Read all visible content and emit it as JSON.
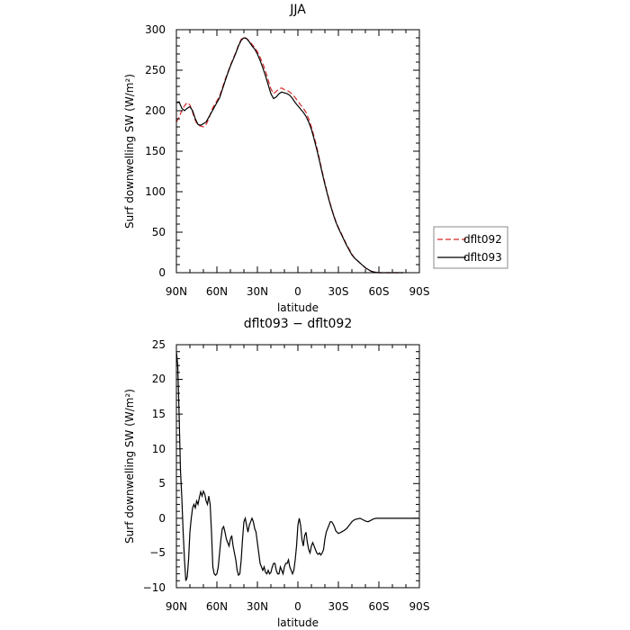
{
  "chart_data": [
    {
      "type": "line",
      "title": "JJA",
      "xlabel": "latitude",
      "ylabel": "Surf downwelling SW (W/m²)",
      "xlim": [
        90,
        -90
      ],
      "ylim": [
        0,
        300
      ],
      "x_ticks": [
        90,
        60,
        30,
        0,
        -30,
        -60,
        -90
      ],
      "x_tick_labels": [
        "90N",
        "60N",
        "30N",
        "0",
        "30S",
        "60S",
        "90S"
      ],
      "y_ticks": [
        0,
        50,
        100,
        150,
        200,
        250,
        300
      ],
      "y_tick_labels": [
        "0",
        "50",
        "100",
        "150",
        "200",
        "250",
        "300"
      ],
      "legend": {
        "placement": "right",
        "entries": [
          "dflt092",
          "dflt093"
        ]
      },
      "series": [
        {
          "name": "dflt092",
          "color": "#d62728",
          "dash": "dashed",
          "x": [
            90,
            88,
            86,
            84,
            82,
            80,
            78,
            76,
            74,
            72,
            70,
            68,
            66,
            64,
            62,
            60,
            58,
            56,
            54,
            52,
            50,
            48,
            46,
            44,
            42,
            40,
            38,
            36,
            34,
            32,
            30,
            28,
            26,
            24,
            22,
            20,
            18,
            16,
            14,
            12,
            10,
            8,
            6,
            4,
            2,
            0,
            -2,
            -4,
            -6,
            -8,
            -10,
            -12,
            -14,
            -16,
            -18,
            -20,
            -22,
            -24,
            -26,
            -28,
            -30,
            -32,
            -34,
            -36,
            -38,
            -40,
            -42,
            -44,
            -46,
            -48,
            -50,
            -52,
            -54,
            -56,
            -58,
            -60,
            -62,
            -64,
            -66,
            -68,
            -70,
            -72,
            -74,
            -76,
            -78
          ],
          "y": [
            186,
            192,
            200,
            206,
            210,
            207,
            198,
            188,
            182,
            181,
            180,
            183,
            190,
            200,
            207,
            212,
            218,
            228,
            238,
            247,
            256,
            264,
            272,
            281,
            288,
            291,
            289,
            286,
            282,
            278,
            273,
            266,
            258,
            249,
            238,
            227,
            221,
            224,
            227,
            228,
            226,
            225,
            223,
            220,
            216,
            212,
            207,
            203,
            198,
            190,
            180,
            168,
            155,
            140,
            125,
            111,
            97,
            85,
            74,
            64,
            56,
            49,
            42,
            35,
            29,
            23,
            18,
            15,
            12,
            9,
            6,
            4,
            2,
            1,
            0.5,
            0,
            -1,
            -1,
            -1,
            -1,
            -1,
            -1,
            -1,
            -1,
            -1
          ]
        },
        {
          "name": "dflt093",
          "color": "#000000",
          "dash": "solid",
          "x": [
            90,
            88,
            86,
            84,
            82,
            80,
            78,
            76,
            74,
            72,
            70,
            68,
            66,
            64,
            62,
            60,
            58,
            56,
            54,
            52,
            50,
            48,
            46,
            44,
            42,
            40,
            38,
            36,
            34,
            32,
            30,
            28,
            26,
            24,
            22,
            20,
            18,
            16,
            14,
            12,
            10,
            8,
            6,
            4,
            2,
            0,
            -2,
            -4,
            -6,
            -8,
            -10,
            -12,
            -14,
            -16,
            -18,
            -20,
            -22,
            -24,
            -26,
            -28,
            -30,
            -32,
            -34,
            -36,
            -38,
            -40,
            -42,
            -44,
            -46,
            -48,
            -50,
            -52,
            -54,
            -56,
            -58,
            -60,
            -62,
            -64,
            -66,
            -68,
            -70,
            -72,
            -74,
            -76,
            -78
          ],
          "y": [
            210,
            211,
            203,
            200,
            203,
            205,
            200,
            190,
            183,
            182,
            184,
            186,
            192,
            198,
            204,
            210,
            216,
            226,
            236,
            246,
            255,
            263,
            271,
            280,
            287,
            290,
            289,
            285,
            280,
            276,
            270,
            262,
            253,
            243,
            232,
            221,
            215,
            217,
            221,
            223,
            222,
            221,
            219,
            215,
            210,
            206,
            202,
            198,
            193,
            186,
            177,
            165,
            152,
            138,
            123,
            109,
            96,
            84,
            73,
            63,
            55,
            48,
            41,
            34,
            28,
            22,
            18,
            15,
            12,
            9,
            6,
            4,
            2,
            1,
            0.5,
            0,
            -1,
            -1,
            -1,
            -1,
            -1,
            -1,
            -1,
            -1,
            -1
          ]
        }
      ]
    },
    {
      "type": "line",
      "title": "dflt093 − dflt092",
      "xlabel": "latitude",
      "ylabel": "Surf downwelling SW (W/m²)",
      "xlim": [
        90,
        -90
      ],
      "ylim": [
        -10,
        25
      ],
      "x_ticks": [
        90,
        60,
        30,
        0,
        -30,
        -60,
        -90
      ],
      "x_tick_labels": [
        "90N",
        "60N",
        "30N",
        "0",
        "30S",
        "60S",
        "90S"
      ],
      "y_ticks": [
        -10,
        -5,
        0,
        5,
        10,
        15,
        20,
        25
      ],
      "y_tick_labels": [
        "−10",
        "−5",
        "0",
        "5",
        "10",
        "15",
        "20",
        "25"
      ],
      "series": [
        {
          "name": "",
          "color": "#000000",
          "dash": "solid",
          "x": [
            90,
            89,
            88,
            87,
            86,
            85,
            84,
            83,
            82,
            81,
            80,
            79,
            78,
            77,
            76,
            75,
            74,
            73,
            72,
            71,
            70,
            69,
            68,
            67,
            66,
            65,
            64,
            63,
            62,
            61,
            60,
            59,
            58,
            57,
            56,
            55,
            54,
            53,
            52,
            51,
            50,
            49,
            48,
            47,
            46,
            45,
            44,
            43,
            42,
            41,
            40,
            39,
            38,
            37,
            36,
            35,
            34,
            33,
            32,
            31,
            30,
            29,
            28,
            27,
            26,
            25,
            24,
            23,
            22,
            21,
            20,
            19,
            18,
            17,
            16,
            15,
            14,
            13,
            12,
            11,
            10,
            9,
            8,
            7,
            6,
            5,
            4,
            3,
            2,
            1,
            0,
            -1,
            -2,
            -3,
            -4,
            -5,
            -6,
            -7,
            -8,
            -9,
            -10,
            -11,
            -12,
            -13,
            -14,
            -15,
            -16,
            -17,
            -18,
            -19,
            -20,
            -21,
            -22,
            -23,
            -24,
            -25,
            -26,
            -27,
            -28,
            -29,
            -30,
            -32,
            -34,
            -36,
            -38,
            -40,
            -42,
            -44,
            -46,
            -48,
            -50,
            -52,
            -54,
            -56,
            -58,
            -60,
            -62,
            -64,
            -66,
            -68,
            -70,
            -74,
            -78,
            -82,
            -86,
            -90
          ],
          "y": [
            24,
            22,
            15,
            7,
            3,
            -2,
            -6,
            -9,
            -8.5,
            -6,
            -2,
            0,
            1.5,
            2,
            1.5,
            2.5,
            2,
            3,
            3.8,
            3.2,
            3.9,
            3.5,
            2.5,
            2,
            3.2,
            2,
            -2,
            -7,
            -8,
            -8.2,
            -8,
            -7,
            -5,
            -3,
            -1.5,
            -1.2,
            -2,
            -3,
            -3.5,
            -4,
            -3,
            -2.5,
            -4,
            -5,
            -6,
            -7.5,
            -8.2,
            -8,
            -6,
            -3,
            -0.5,
            0,
            -1,
            -2,
            -1,
            -0.5,
            0,
            -0.5,
            -1.5,
            -2,
            -3.5,
            -5,
            -6.5,
            -7,
            -7.5,
            -7,
            -7.8,
            -8,
            -7.5,
            -8,
            -7.8,
            -7,
            -6.5,
            -6.5,
            -7.5,
            -8,
            -8,
            -7,
            -7.5,
            -8,
            -7,
            -6.5,
            -6.5,
            -6,
            -7,
            -7.5,
            -8,
            -7.5,
            -6,
            -4,
            -1,
            0,
            -1,
            -3,
            -4,
            -2.5,
            -2,
            -3.5,
            -4.5,
            -5,
            -4,
            -3.5,
            -4,
            -4.5,
            -5,
            -5.2,
            -5,
            -5.3,
            -5,
            -4.5,
            -3,
            -2,
            -1.5,
            -1,
            -0.5,
            -0.5,
            -0.8,
            -1.2,
            -1.8,
            -2,
            -2.2,
            -2,
            -1.8,
            -1.5,
            -1,
            -0.5,
            -0.2,
            -0.1,
            0,
            -0.2,
            -0.4,
            -0.5,
            -0.3,
            -0.1,
            0,
            0,
            0,
            0,
            0,
            0,
            0,
            0,
            0,
            0,
            0,
            0
          ]
        }
      ]
    }
  ]
}
